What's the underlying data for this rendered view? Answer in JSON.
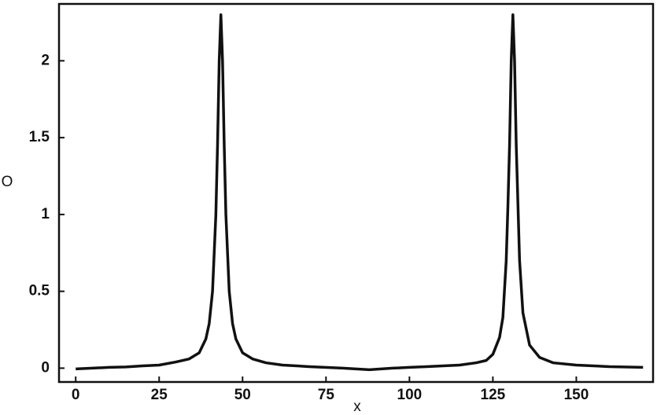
{
  "chart_data": {
    "type": "line",
    "x_label": "x",
    "y_label": "O",
    "x": [
      0,
      5,
      10,
      15,
      20,
      25,
      30,
      34,
      37,
      39,
      40,
      41,
      42,
      42.5,
      43,
      43.5,
      44,
      44.5,
      45,
      46,
      47,
      48,
      50,
      53,
      57,
      62,
      70,
      80,
      88,
      95,
      100,
      105,
      110,
      115,
      120,
      123,
      125,
      127,
      128,
      129,
      129.5,
      130,
      130.5,
      131,
      131.5,
      132,
      133,
      134,
      136,
      139,
      143,
      150,
      160,
      170
    ],
    "series": [
      {
        "color": "#111111",
        "values": [
          -0.005,
          0,
          0.005,
          0.008,
          0.015,
          0.02,
          0.04,
          0.06,
          0.1,
          0.19,
          0.29,
          0.5,
          1.0,
          1.45,
          2.0,
          2.3,
          2.0,
          1.45,
          1.0,
          0.5,
          0.29,
          0.19,
          0.1,
          0.06,
          0.035,
          0.02,
          0.01,
          0,
          -0.01,
          0,
          0.005,
          0.01,
          0.015,
          0.02,
          0.035,
          0.05,
          0.09,
          0.2,
          0.33,
          0.7,
          1.05,
          1.45,
          2.0,
          2.3,
          2.0,
          1.45,
          0.7,
          0.36,
          0.15,
          0.07,
          0.035,
          0.02,
          0.01,
          0.005
        ]
      }
    ],
    "xlim": [
      -5,
      173
    ],
    "ylim": [
      -0.09,
      2.37
    ],
    "xticks": [
      0,
      25,
      50,
      75,
      100,
      125,
      150
    ],
    "yticks": [
      0,
      0.5,
      1,
      1.5,
      2
    ]
  }
}
